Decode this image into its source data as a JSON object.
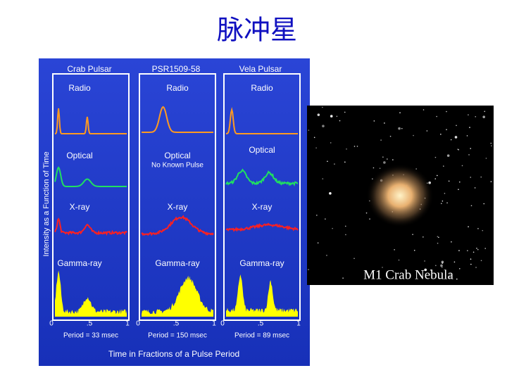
{
  "title": "脉冲星",
  "figure": {
    "y_axis_label": "Intensity as a Function of Time",
    "x_axis_label": "Time in Fractions of a Pulse Period",
    "panels": [
      {
        "name": "Crab Pulsar",
        "bands": [
          "Radio",
          "Optical",
          "X-ray",
          "Gamma-ray"
        ],
        "ticks": [
          "0",
          ".5",
          "1"
        ],
        "period": "Period = 33 msec"
      },
      {
        "name": "PSR1509-58",
        "bands": [
          "Radio",
          "Optical",
          "X-ray",
          "Gamma-ray"
        ],
        "note": "No Known Pulse",
        "ticks": [
          "0",
          ".5",
          "1"
        ],
        "period": "Period = 150 msec"
      },
      {
        "name": "Vela Pulsar",
        "bands": [
          "Radio",
          "Optical",
          "X-ray",
          "Gamma-ray"
        ],
        "ticks": [
          "0",
          ".5",
          "1"
        ],
        "period": "Period = 89 msec"
      }
    ]
  },
  "image": {
    "caption": "M1 Crab Nebula"
  }
}
